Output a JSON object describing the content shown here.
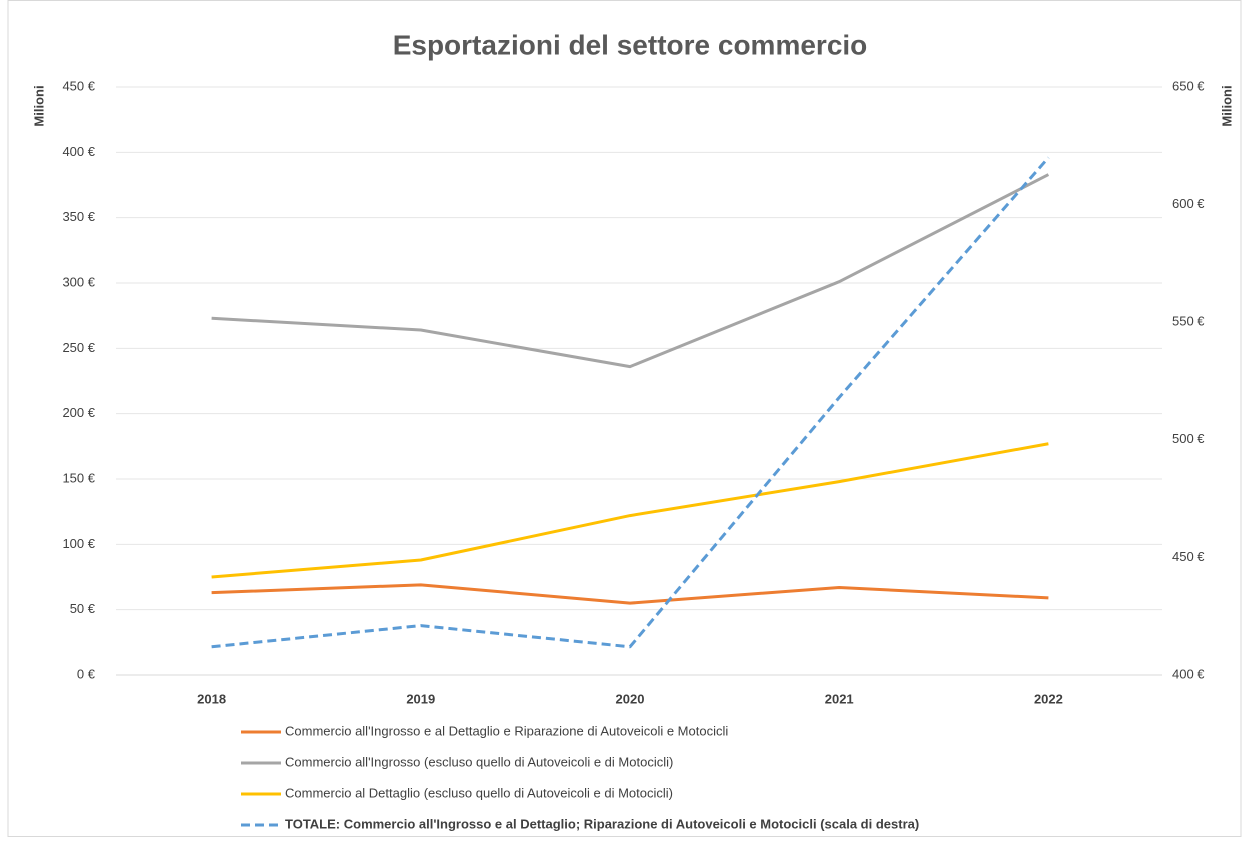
{
  "chart_data": {
    "type": "line",
    "title": "Esportazioni del settore commercio",
    "y_label": "Milioni",
    "y2_label": "Milioni",
    "categories": [
      "2018",
      "2019",
      "2020",
      "2021",
      "2022"
    ],
    "ylim": [
      0,
      450
    ],
    "yticks": [
      {
        "value": 0,
        "label": "0 €"
      },
      {
        "value": 50,
        "label": "50 €"
      },
      {
        "value": 100,
        "label": "100 €"
      },
      {
        "value": 150,
        "label": "150 €"
      },
      {
        "value": 200,
        "label": "200 €"
      },
      {
        "value": 250,
        "label": "250 €"
      },
      {
        "value": 300,
        "label": "300 €"
      },
      {
        "value": 350,
        "label": "350 €"
      },
      {
        "value": 400,
        "label": "400 €"
      },
      {
        "value": 450,
        "label": "450 €"
      }
    ],
    "y2lim": [
      400,
      650
    ],
    "y2ticks": [
      {
        "value": 400,
        "label": "400 €"
      },
      {
        "value": 450,
        "label": "450 €"
      },
      {
        "value": 500,
        "label": "500 €"
      },
      {
        "value": 550,
        "label": "550 €"
      },
      {
        "value": 600,
        "label": "600 €"
      },
      {
        "value": 650,
        "label": "650 €"
      }
    ],
    "grid": true,
    "legend": "bottom",
    "series": [
      {
        "name": "Commercio all'Ingrosso e al Dettaglio e Riparazione di Autoveicoli e Motocicli",
        "color": "#ed7d31",
        "values": [
          63,
          69,
          55,
          67,
          59
        ]
      },
      {
        "name": "Commercio all'Ingrosso (escluso quello di Autoveicoli e di Motocicli)",
        "color": "#a5a5a5",
        "values": [
          273,
          264,
          236,
          301,
          383
        ]
      },
      {
        "name": "Commercio al Dettaglio (escluso quello di Autoveicoli e di Motocicli)",
        "color": "#ffc000",
        "values": [
          75,
          88,
          122,
          148,
          177
        ]
      },
      {
        "name": "TOTALE: Commercio all'Ingrosso e al Dettaglio; Riparazione di Autoveicoli e Motocicli (scala di destra)",
        "color": "#5b9bd5",
        "dashed": true,
        "axis": "y2",
        "values": [
          412,
          421,
          412,
          518,
          620
        ]
      }
    ]
  }
}
